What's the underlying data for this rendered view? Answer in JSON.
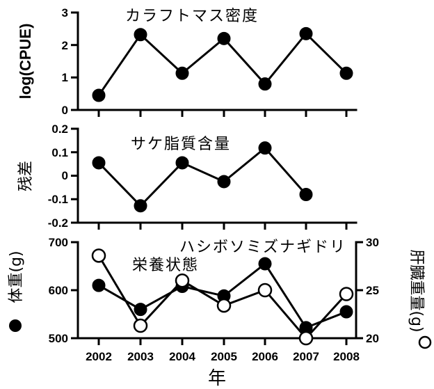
{
  "chart_data": [
    {
      "type": "line",
      "title": "カラフトマス密度",
      "ylabel": "log(CPUE)",
      "x": [
        2002,
        2003,
        2004,
        2005,
        2006,
        2007,
        2008
      ],
      "ylim": [
        0,
        3
      ],
      "yticks": [
        "0",
        "1",
        "2",
        "3"
      ],
      "series": [
        {
          "marker": "filled",
          "values": [
            0.45,
            2.32,
            1.13,
            2.2,
            0.8,
            2.35,
            1.13
          ]
        }
      ]
    },
    {
      "type": "line",
      "title": "サケ脂質含量",
      "ylabel": "残差",
      "x": [
        2002,
        2003,
        2004,
        2005,
        2006,
        2007
      ],
      "ylim": [
        -0.2,
        0.2
      ],
      "yticks": [
        "-0.2",
        "-0.1",
        "0",
        "0.1",
        "0.2"
      ],
      "series": [
        {
          "marker": "filled",
          "values": [
            0.055,
            -0.128,
            0.055,
            -0.025,
            0.118,
            -0.08
          ]
        }
      ]
    },
    {
      "type": "line",
      "title": "ハシボソミズナギドリ",
      "subtitle": "栄養状態",
      "ylabel_left": "体重(g)",
      "ylabel_right": "肝臓重量(g)",
      "x": [
        2002,
        2003,
        2004,
        2005,
        2006,
        2007,
        2008
      ],
      "xticks": [
        "2002",
        "2003",
        "2004",
        "2005",
        "2006",
        "2007",
        "2008"
      ],
      "xlabel": "年",
      "ylim_left": [
        500,
        700
      ],
      "yticks_left": [
        "500",
        "600",
        "700"
      ],
      "ylim_right": [
        20,
        30
      ],
      "yticks_right": [
        "20",
        "25",
        "30"
      ],
      "series": [
        {
          "axis": "left",
          "marker": "filled",
          "values": [
            610,
            560,
            608,
            588,
            655,
            522,
            555
          ]
        },
        {
          "axis": "right",
          "marker": "open",
          "values": [
            28.6,
            21.3,
            26.0,
            23.4,
            25.0,
            20.0,
            24.6
          ]
        }
      ]
    }
  ]
}
